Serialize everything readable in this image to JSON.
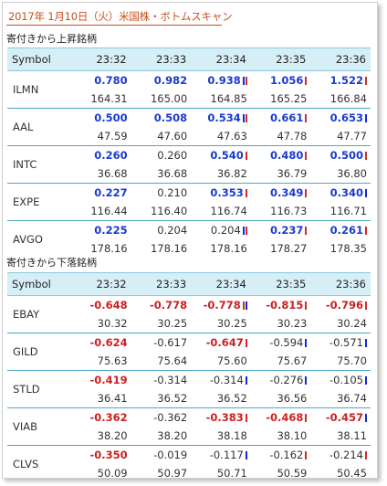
{
  "page": {
    "title": "2017年 1月10日（火）米国株・ボトムスキャン"
  },
  "sections": [
    {
      "heading": "寄付きから上昇銘柄",
      "header": [
        "Symbol",
        "23:32",
        "23:33",
        "23:34",
        "23:35",
        "23:36"
      ],
      "rows": [
        {
          "symbol": "ILMN",
          "changes": [
            {
              "v": "0.780",
              "dir": "pos",
              "bars": []
            },
            {
              "v": "0.982",
              "dir": "pos",
              "bars": []
            },
            {
              "v": "0.938",
              "dir": "pos",
              "bars": [
                "blue",
                "red"
              ]
            },
            {
              "v": "1.056",
              "dir": "pos",
              "bars": [
                "red"
              ]
            },
            {
              "v": "1.522",
              "dir": "pos",
              "bars": [
                "red"
              ]
            }
          ],
          "prices": [
            "164.31",
            "165.00",
            "164.85",
            "165.25",
            "166.84"
          ]
        },
        {
          "symbol": "AAL",
          "changes": [
            {
              "v": "0.500",
              "dir": "pos",
              "bars": []
            },
            {
              "v": "0.508",
              "dir": "pos",
              "bars": []
            },
            {
              "v": "0.534",
              "dir": "pos",
              "bars": [
                "blue",
                "red"
              ]
            },
            {
              "v": "0.661",
              "dir": "pos",
              "bars": [
                "red"
              ]
            },
            {
              "v": "0.653",
              "dir": "pos",
              "bars": [
                "blue"
              ]
            }
          ],
          "prices": [
            "47.59",
            "47.60",
            "47.63",
            "47.78",
            "47.77"
          ]
        },
        {
          "symbol": "INTC",
          "changes": [
            {
              "v": "0.260",
              "dir": "pos",
              "bars": []
            },
            {
              "v": "0.260",
              "dir": "neu",
              "bars": []
            },
            {
              "v": "0.540",
              "dir": "pos",
              "bars": [
                "red"
              ]
            },
            {
              "v": "0.480",
              "dir": "pos",
              "bars": [
                "red"
              ]
            },
            {
              "v": "0.500",
              "dir": "pos",
              "bars": [
                "red"
              ]
            }
          ],
          "prices": [
            "36.68",
            "36.68",
            "36.82",
            "36.79",
            "36.80"
          ]
        },
        {
          "symbol": "EXPE",
          "changes": [
            {
              "v": "0.227",
              "dir": "pos",
              "bars": []
            },
            {
              "v": "0.210",
              "dir": "neu",
              "bars": []
            },
            {
              "v": "0.353",
              "dir": "pos",
              "bars": [
                "red"
              ]
            },
            {
              "v": "0.349",
              "dir": "pos",
              "bars": [
                "red"
              ]
            },
            {
              "v": "0.340",
              "dir": "pos",
              "bars": [
                "blue"
              ]
            }
          ],
          "prices": [
            "116.44",
            "116.40",
            "116.74",
            "116.73",
            "116.71"
          ]
        },
        {
          "symbol": "AVGO",
          "changes": [
            {
              "v": "0.225",
              "dir": "pos",
              "bars": []
            },
            {
              "v": "0.204",
              "dir": "neu",
              "bars": []
            },
            {
              "v": "0.204",
              "dir": "neu",
              "bars": [
                "blue",
                "red"
              ]
            },
            {
              "v": "0.237",
              "dir": "pos",
              "bars": [
                "red"
              ]
            },
            {
              "v": "0.261",
              "dir": "pos",
              "bars": [
                "red"
              ]
            }
          ],
          "prices": [
            "178.16",
            "178.16",
            "178.16",
            "178.27",
            "178.35"
          ]
        }
      ]
    },
    {
      "heading": "寄付きから下落銘柄",
      "header": [
        "Symbol",
        "23:32",
        "23:33",
        "23:34",
        "23:35",
        "23:36"
      ],
      "rows": [
        {
          "symbol": "EBAY",
          "changes": [
            {
              "v": "-0.648",
              "dir": "neg",
              "bars": []
            },
            {
              "v": "-0.778",
              "dir": "neg",
              "bars": []
            },
            {
              "v": "-0.778",
              "dir": "neg",
              "bars": [
                "red",
                "blue"
              ]
            },
            {
              "v": "-0.815",
              "dir": "neg",
              "bars": [
                "red"
              ]
            },
            {
              "v": "-0.796",
              "dir": "neg",
              "bars": [
                "red"
              ]
            }
          ],
          "prices": [
            "30.32",
            "30.25",
            "30.25",
            "30.23",
            "30.24"
          ]
        },
        {
          "symbol": "GILD",
          "changes": [
            {
              "v": "-0.624",
              "dir": "neg",
              "bars": []
            },
            {
              "v": "-0.617",
              "dir": "neu",
              "bars": []
            },
            {
              "v": "-0.647",
              "dir": "neg",
              "bars": [
                "red"
              ]
            },
            {
              "v": "-0.594",
              "dir": "neu",
              "bars": [
                "blue"
              ]
            },
            {
              "v": "-0.571",
              "dir": "neu",
              "bars": [
                "blue"
              ]
            }
          ],
          "prices": [
            "75.63",
            "75.64",
            "75.60",
            "75.67",
            "75.70"
          ]
        },
        {
          "symbol": "STLD",
          "changes": [
            {
              "v": "-0.419",
              "dir": "neg",
              "bars": []
            },
            {
              "v": "-0.314",
              "dir": "neu",
              "bars": []
            },
            {
              "v": "-0.314",
              "dir": "neu",
              "bars": [
                "blue"
              ]
            },
            {
              "v": "-0.276",
              "dir": "neu",
              "bars": [
                "blue"
              ]
            },
            {
              "v": "-0.105",
              "dir": "neu",
              "bars": [
                "blue"
              ]
            }
          ],
          "prices": [
            "36.41",
            "36.52",
            "36.52",
            "36.56",
            "36.74"
          ]
        },
        {
          "symbol": "VIAB",
          "changes": [
            {
              "v": "-0.362",
              "dir": "neg",
              "bars": []
            },
            {
              "v": "-0.362",
              "dir": "neu",
              "bars": []
            },
            {
              "v": "-0.383",
              "dir": "neg",
              "bars": [
                "red"
              ]
            },
            {
              "v": "-0.468",
              "dir": "neg",
              "bars": [
                "red"
              ]
            },
            {
              "v": "-0.457",
              "dir": "neg",
              "bars": [
                "blue"
              ]
            }
          ],
          "prices": [
            "38.20",
            "38.20",
            "38.18",
            "38.10",
            "38.11"
          ]
        },
        {
          "symbol": "CLVS",
          "changes": [
            {
              "v": "-0.350",
              "dir": "neg",
              "bars": []
            },
            {
              "v": "-0.019",
              "dir": "neu",
              "bars": []
            },
            {
              "v": "-0.117",
              "dir": "neu",
              "bars": [
                "blue"
              ]
            },
            {
              "v": "-0.162",
              "dir": "neu",
              "bars": [
                "red"
              ]
            },
            {
              "v": "-0.214",
              "dir": "neu",
              "bars": [
                "red"
              ]
            }
          ],
          "prices": [
            "50.09",
            "50.97",
            "50.71",
            "50.59",
            "50.45"
          ]
        }
      ]
    }
  ],
  "colors": {
    "up": "#1a3ad0",
    "down": "#cc2020",
    "title": "#c8501e",
    "header_bg": "#d6eef6",
    "rule": "#4fa6c8"
  }
}
